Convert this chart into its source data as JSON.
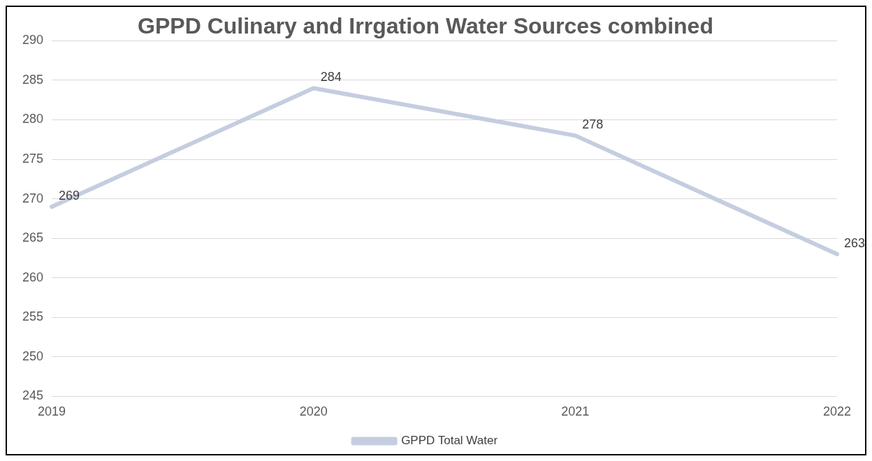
{
  "chart_data": {
    "type": "line",
    "title": "GPPD Culinary and Irrgation Water Sources combined",
    "categories": [
      "2019",
      "2020",
      "2021",
      "2022"
    ],
    "series": [
      {
        "name": "GPPD Total Water",
        "color": "#c5cde0",
        "values": [
          269,
          284,
          278,
          263
        ]
      }
    ],
    "ylim": [
      245,
      290
    ],
    "yticks": [
      245,
      250,
      255,
      260,
      265,
      270,
      275,
      280,
      285,
      290
    ],
    "grid": "y",
    "legend": "bottom",
    "data_labels": true,
    "marker": "none",
    "line_style": "solid"
  }
}
